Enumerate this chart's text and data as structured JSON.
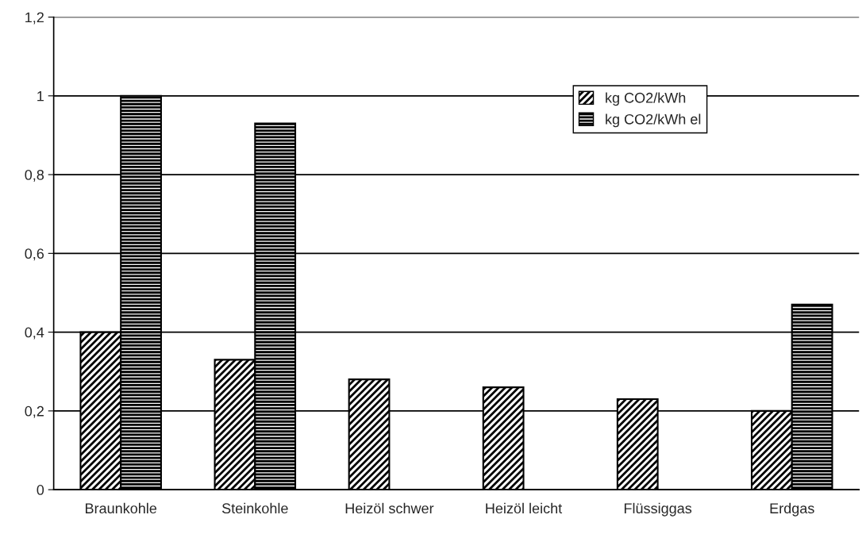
{
  "chart_data": {
    "type": "bar",
    "categories": [
      "Braunkohle",
      "Steinkohle",
      "Heizöl schwer",
      "Heizöl leicht",
      "Flüssiggas",
      "Erdgas"
    ],
    "series": [
      {
        "name": "kg CO2/kWh",
        "color": "#000000",
        "values": [
          0.4,
          0.33,
          0.28,
          0.26,
          0.23,
          0.2
        ]
      },
      {
        "name": "kg CO2/kWh el",
        "color": "#000000",
        "values": [
          1.0,
          0.93,
          null,
          null,
          null,
          0.47
        ]
      }
    ],
    "ylim": [
      0,
      1.2
    ],
    "yticks": [
      0,
      {
        "value": 0.2,
        "label": "0,2"
      },
      {
        "value": 0.4,
        "label": "0,4"
      },
      {
        "value": 0.6,
        "label": "0,6"
      },
      {
        "value": 0.8,
        "label": "0,8"
      },
      1,
      {
        "value": 1.2,
        "label": "1,2"
      }
    ],
    "grid": "y",
    "legend": "top right"
  }
}
